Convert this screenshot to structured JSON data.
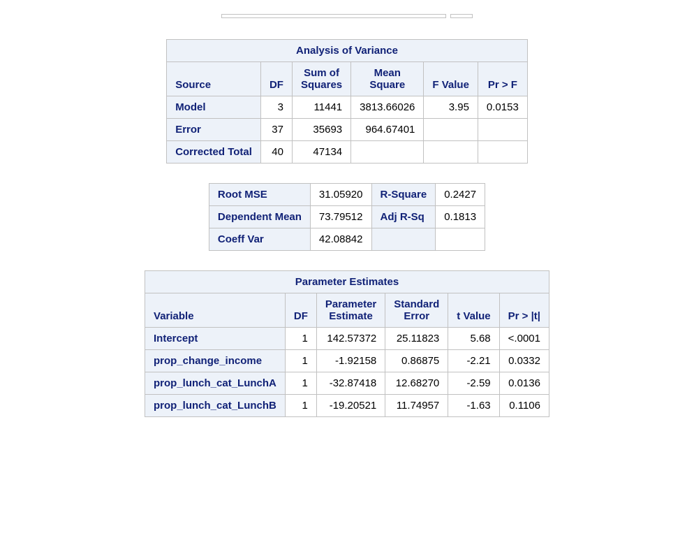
{
  "colors": {
    "header_bg": "#edf2f9",
    "header_fg": "#112277",
    "border": "#c1c1c1",
    "body_bg": "#ffffff",
    "body_fg": "#000000"
  },
  "typography": {
    "font_family": "Arial, Helvetica, sans-serif",
    "base_fontsize_pt": 11,
    "header_weight": "bold"
  },
  "anova": {
    "title": "Analysis of Variance",
    "columns": [
      "Source",
      "DF",
      "Sum of\nSquares",
      "Mean\nSquare",
      "F Value",
      "Pr > F"
    ],
    "column_align": [
      "left",
      "right",
      "right",
      "right",
      "right",
      "right"
    ],
    "rows": [
      {
        "source": "Model",
        "df": "3",
        "ss": "11441",
        "ms": "3813.66026",
        "f": "3.95",
        "p": "0.0153"
      },
      {
        "source": "Error",
        "df": "37",
        "ss": "35693",
        "ms": "964.67401",
        "f": "",
        "p": ""
      },
      {
        "source": "Corrected Total",
        "df": "40",
        "ss": "47134",
        "ms": "",
        "f": "",
        "p": ""
      }
    ]
  },
  "fit": {
    "rows": [
      {
        "l1": "Root MSE",
        "v1": "31.05920",
        "l2": "R-Square",
        "v2": "0.2427"
      },
      {
        "l1": "Dependent Mean",
        "v1": "73.79512",
        "l2": "Adj R-Sq",
        "v2": "0.1813"
      },
      {
        "l1": "Coeff Var",
        "v1": "42.08842",
        "l2": "",
        "v2": ""
      }
    ]
  },
  "params": {
    "title": "Parameter Estimates",
    "columns": [
      "Variable",
      "DF",
      "Parameter\nEstimate",
      "Standard\nError",
      "t Value",
      "Pr > |t|"
    ],
    "column_align": [
      "left",
      "right",
      "right",
      "right",
      "right",
      "right"
    ],
    "rows": [
      {
        "var": "Intercept",
        "df": "1",
        "est": "142.57372",
        "se": "25.11823",
        "t": "5.68",
        "p": "<.0001"
      },
      {
        "var": "prop_change_income",
        "df": "1",
        "est": "-1.92158",
        "se": "0.86875",
        "t": "-2.21",
        "p": "0.0332"
      },
      {
        "var": "prop_lunch_cat_LunchA",
        "df": "1",
        "est": "-32.87418",
        "se": "12.68270",
        "t": "-2.59",
        "p": "0.0136"
      },
      {
        "var": "prop_lunch_cat_LunchB",
        "df": "1",
        "est": "-19.20521",
        "se": "11.74957",
        "t": "-1.63",
        "p": "0.1106"
      }
    ]
  }
}
